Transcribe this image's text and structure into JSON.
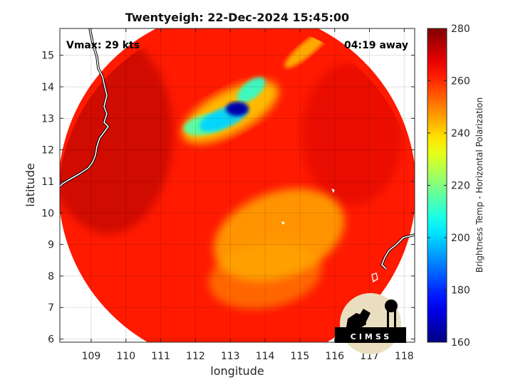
{
  "chart_data": {
    "type": "heatmap",
    "title": "Twentyeigh: 22-Dec-2024 15:45:00",
    "xlabel": "longitude",
    "ylabel": "latitude",
    "xlim": [
      108.1,
      118.3
    ],
    "ylim": [
      5.9,
      15.85
    ],
    "x_ticks": [
      109,
      110,
      111,
      112,
      113,
      114,
      115,
      116,
      117,
      118
    ],
    "y_ticks": [
      6,
      7,
      8,
      9,
      10,
      11,
      12,
      13,
      14,
      15
    ],
    "grid": true,
    "annotations": {
      "vmax": "Vmax: 29 kts",
      "away": "04:19 away"
    },
    "colorbar": {
      "label": "Brightness Temp - Horizontal Polarization",
      "range": [
        160,
        280
      ],
      "ticks": [
        160,
        180,
        200,
        220,
        240,
        260,
        280
      ],
      "colormap": "jet"
    },
    "swath": {
      "center_lon": 113.2,
      "center_lat": 10.8,
      "background_temp": 262
    },
    "features": [
      {
        "name": "cold-core",
        "lon": 113.2,
        "lat": 13.3,
        "temp": 165
      },
      {
        "name": "convective-band",
        "lon": 112.8,
        "lat": 13.0,
        "temp": 200
      },
      {
        "name": "band-tail",
        "lon": 112.3,
        "lat": 12.8,
        "temp": 215
      },
      {
        "name": "outer-band",
        "lon": 113.6,
        "lat": 13.9,
        "temp": 210
      },
      {
        "name": "warm-region-center",
        "lon": 114.4,
        "lat": 9.3,
        "temp": 245
      },
      {
        "name": "warm-region-south",
        "lon": 114.0,
        "lat": 8.0,
        "temp": 250
      },
      {
        "name": "northeast-streak",
        "lon": 115.2,
        "lat": 15.2,
        "temp": 242
      }
    ],
    "logo_text": "CIMSS"
  }
}
